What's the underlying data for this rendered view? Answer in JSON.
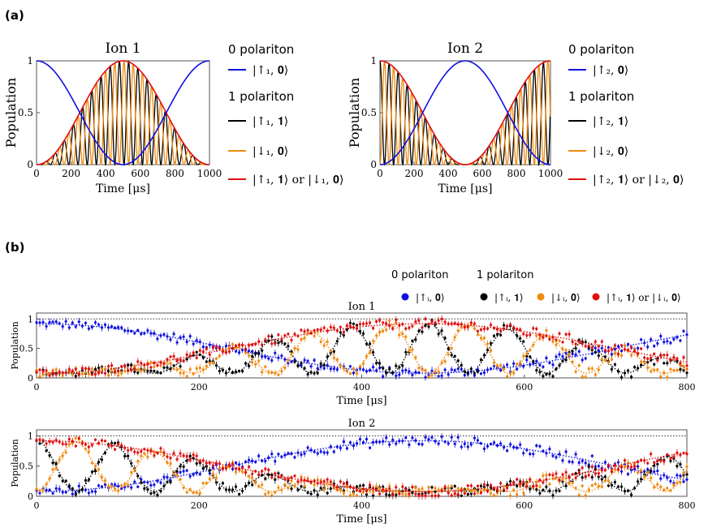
{
  "panel_labels": {
    "a": "(a)",
    "b": "(b)"
  },
  "legend_a": {
    "ion1": {
      "group0": "0 polariton",
      "s0": "|↑₁, 𝟎⟩",
      "group1": "1 polariton",
      "s1": "|↑₁, 𝟏⟩",
      "s2": "|↓₁, 𝟎⟩",
      "s3": "|↑₁, 𝟏⟩ or |↓₁, 𝟎⟩"
    },
    "ion2": {
      "group0": "0 polariton",
      "s0": "|↑₂, 𝟎⟩",
      "group1": "1 polariton",
      "s1": "|↑₂, 𝟏⟩",
      "s2": "|↓₂, 𝟎⟩",
      "s3": "|↑₂, 𝟏⟩ or |↓₂, 𝟎⟩"
    }
  },
  "legend_b": {
    "group0": "0 polariton",
    "group1": "1 polariton",
    "e0": "|↑ᵢ, 𝟎⟩",
    "e1": "|↑ᵢ, 𝟏⟩",
    "e2": "|↓ᵢ, 𝟎⟩",
    "e3": "|↑ᵢ, 𝟏⟩ or |↓ᵢ, 𝟎⟩"
  },
  "colors": {
    "blue": "#1010e0",
    "black": "#000000",
    "orange": "#f08a10",
    "red": "#e01010",
    "axis": "#555555"
  },
  "chart_data": [
    {
      "id": "a1",
      "type": "line",
      "title": "Ion 1",
      "xlabel": "Time [μs]",
      "ylabel": "Population",
      "xlim": [
        0,
        1000
      ],
      "ylim": [
        0,
        1
      ],
      "xticks": [
        "0",
        "200",
        "400",
        "600",
        "800",
        "1000"
      ],
      "yticks": [
        "0",
        "0.5",
        "1"
      ],
      "model": {
        "omega_red": 0.118,
        "envelope_period": 1000,
        "flip_ion2": false
      },
      "series": [
        {
          "name": "|↑₁, 𝟎⟩",
          "color": "blue",
          "role": "up0"
        },
        {
          "name": "|↑₁, 𝟏⟩",
          "color": "black",
          "role": "up1"
        },
        {
          "name": "|↓₁, 𝟎⟩",
          "color": "orange",
          "role": "down0"
        },
        {
          "name": "|↑₁, 𝟏⟩ or |↓₁, 𝟎⟩",
          "color": "red",
          "role": "sum"
        }
      ]
    },
    {
      "id": "a2",
      "type": "line",
      "title": "Ion 2",
      "xlabel": "Time [μs]",
      "ylabel": "Population",
      "xlim": [
        0,
        1000
      ],
      "ylim": [
        0,
        1
      ],
      "xticks": [
        "0",
        "200",
        "400",
        "600",
        "800",
        "1000"
      ],
      "yticks": [
        "0",
        "0.5",
        "1"
      ],
      "model": {
        "omega_red": 0.118,
        "envelope_period": 1000,
        "flip_ion2": true
      },
      "series": [
        {
          "name": "|↑₂, 𝟎⟩",
          "color": "blue",
          "role": "up0"
        },
        {
          "name": "|↑₂, 𝟏⟩",
          "color": "black",
          "role": "up1"
        },
        {
          "name": "|↓₂, 𝟎⟩",
          "color": "orange",
          "role": "down0"
        },
        {
          "name": "|↑₂, 𝟏⟩ or |↓₂, 𝟎⟩",
          "color": "red",
          "role": "sum"
        }
      ]
    },
    {
      "id": "b1",
      "type": "scatter",
      "title": "Ion 1",
      "xlabel": "Time [μs]",
      "ylabel": "Population",
      "xlim": [
        0,
        800
      ],
      "ylim": [
        0,
        1.1
      ],
      "xticks": [
        "0",
        "200",
        "400",
        "600",
        "800"
      ],
      "yticks": [
        "0",
        "0.5",
        "1"
      ],
      "reference_line": 1,
      "model": {
        "omega_red": 0.065,
        "envelope_period": 950,
        "flip_ion2": false,
        "n_points": 200
      },
      "series": [
        {
          "name": "|↑ᵢ, 𝟎⟩",
          "color": "blue",
          "role": "up0"
        },
        {
          "name": "|↑ᵢ, 𝟏⟩",
          "color": "black",
          "role": "up1"
        },
        {
          "name": "|↓ᵢ, 𝟎⟩",
          "color": "orange",
          "role": "down0"
        },
        {
          "name": "|↑ᵢ, 𝟏⟩ or |↓ᵢ, 𝟎⟩",
          "color": "red",
          "role": "sum"
        }
      ]
    },
    {
      "id": "b2",
      "type": "scatter",
      "title": "Ion 2",
      "xlabel": "Time [μs]",
      "ylabel": "Population",
      "xlim": [
        0,
        800
      ],
      "ylim": [
        0,
        1.1
      ],
      "xticks": [
        "0",
        "200",
        "400",
        "600",
        "800"
      ],
      "yticks": [
        "0",
        "0.5",
        "1"
      ],
      "reference_line": 1,
      "model": {
        "omega_red": 0.065,
        "envelope_period": 950,
        "flip_ion2": true,
        "n_points": 200
      },
      "series": [
        {
          "name": "|↑ᵢ, 𝟎⟩",
          "color": "blue",
          "role": "up0"
        },
        {
          "name": "|↑ᵢ, 𝟏⟩",
          "color": "black",
          "role": "up1"
        },
        {
          "name": "|↓ᵢ, 𝟎⟩",
          "color": "orange",
          "role": "down0"
        },
        {
          "name": "|↑ᵢ, 𝟏⟩ or |↓ᵢ, 𝟎⟩",
          "color": "red",
          "role": "sum"
        }
      ]
    }
  ]
}
